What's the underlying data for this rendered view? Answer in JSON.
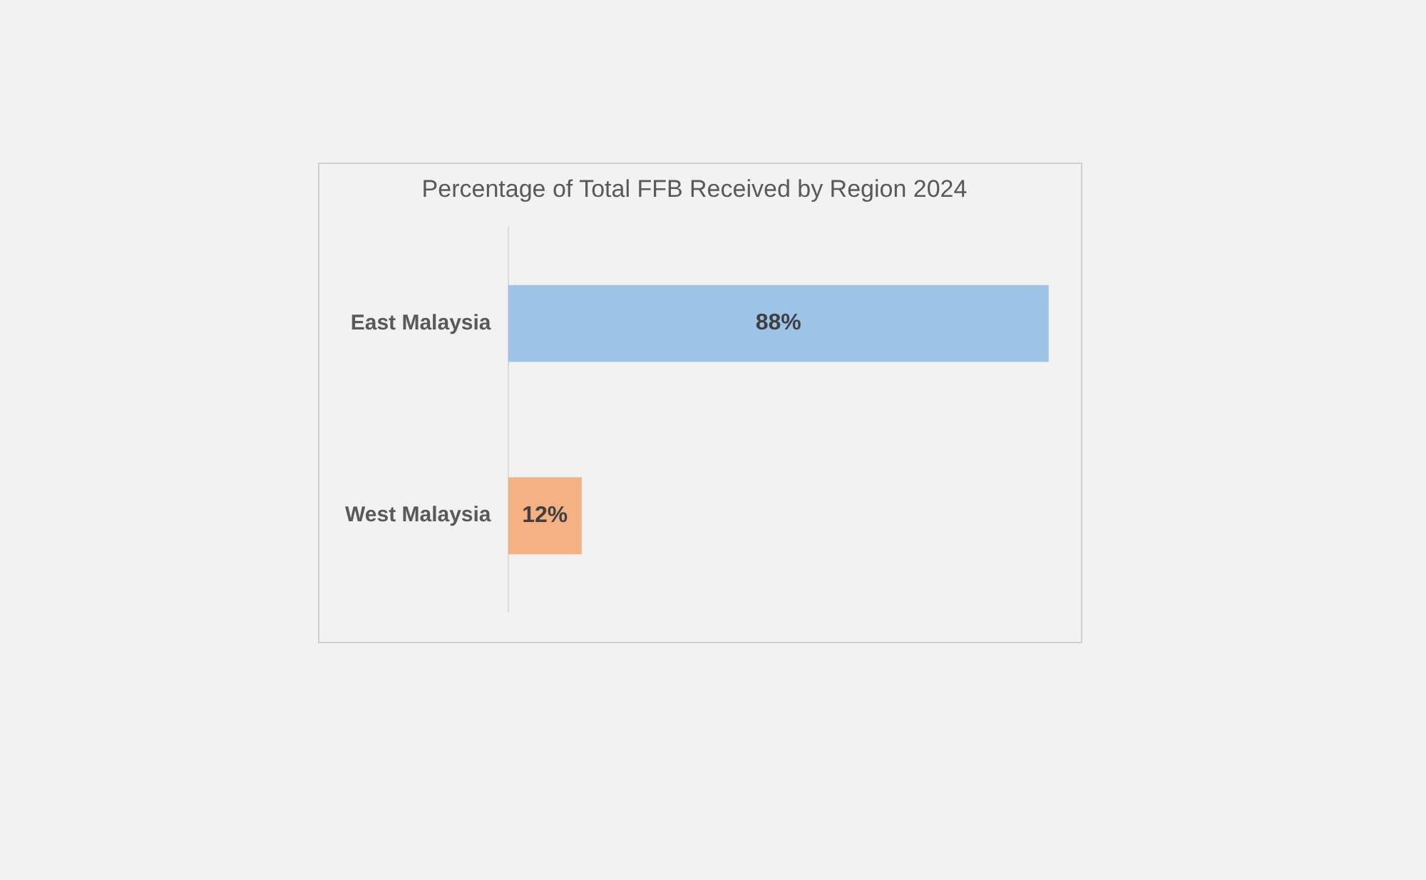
{
  "chart_data": {
    "type": "bar",
    "orientation": "horizontal",
    "title": "Percentage of Total FFB Received by Region 2024",
    "categories": [
      "East Malaysia",
      "West Malaysia"
    ],
    "values": [
      88,
      12
    ],
    "colors": [
      "#9dc3e6",
      "#f4b183"
    ],
    "value_labels": [
      "88%",
      "12%"
    ],
    "legend": false
  }
}
